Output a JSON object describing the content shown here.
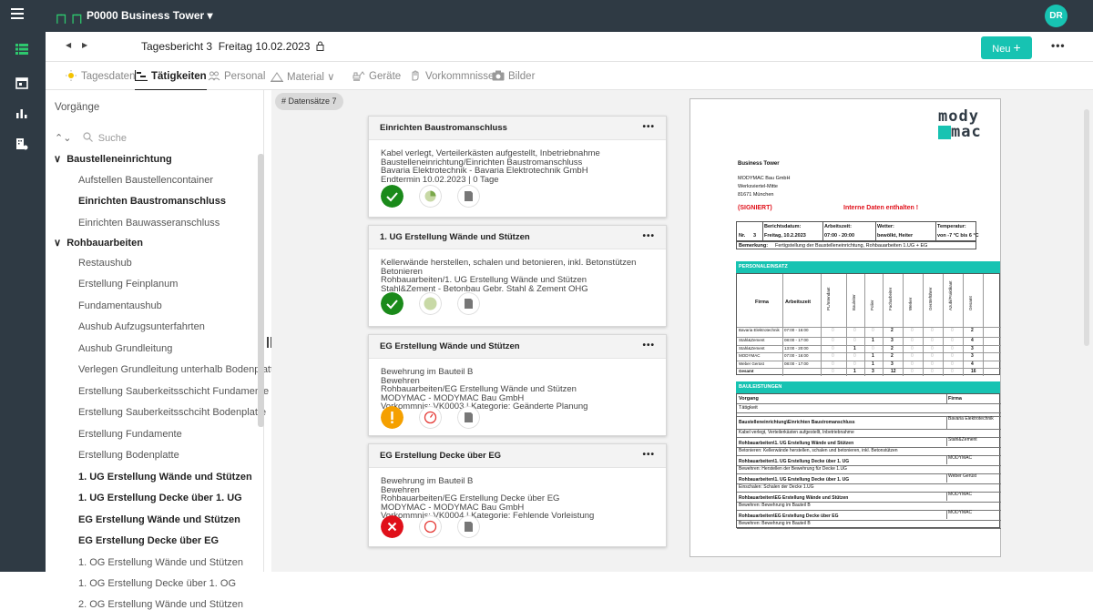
{
  "project": {
    "name": "P0000 Business Tower"
  },
  "user": {
    "initials": "DR"
  },
  "report": {
    "title": "Tagesbericht 3",
    "date": "Freitag 10.02.2023",
    "new_label": "Neu"
  },
  "tabs": [
    {
      "label": "Tagesdaten",
      "icon": "sun-icon"
    },
    {
      "label": "Tätigkeiten",
      "icon": "gantt-icon"
    },
    {
      "label": "Personal",
      "icon": "people-icon"
    },
    {
      "label": "Material",
      "icon": "material-icon"
    },
    {
      "label": "Geräte",
      "icon": "excavator-icon"
    },
    {
      "label": "Vorkommnisse",
      "icon": "hand-icon"
    },
    {
      "label": "Bilder",
      "icon": "camera-icon"
    }
  ],
  "sidebar": {
    "title": "Vorgänge",
    "search_placeholder": "Suche",
    "groups": [
      {
        "label": "Baustelleneinrichtung",
        "items": [
          {
            "label": "Aufstellen Baustellencontainer",
            "bold": false
          },
          {
            "label": "Einrichten Baustromanschluss",
            "bold": true
          },
          {
            "label": "Einrichten Bauwasseranschluss",
            "bold": false
          }
        ]
      },
      {
        "label": "Rohbauarbeiten",
        "items": [
          {
            "label": "Restaushub",
            "bold": false
          },
          {
            "label": "Erstellung Feinplanum",
            "bold": false
          },
          {
            "label": "Fundamentaushub",
            "bold": false
          },
          {
            "label": "Aushub Aufzugsunterfahrten",
            "bold": false
          },
          {
            "label": "Aushub Grundleitung",
            "bold": false
          },
          {
            "label": "Verlegen Grundleitung unterhalb Bodenplatte",
            "bold": false
          },
          {
            "label": "Erstellung Sauberkeitsschicht Fundamente und",
            "bold": false
          },
          {
            "label": "Erstellung Sauberkeitsschciht Bodenplatte",
            "bold": false
          },
          {
            "label": "Erstellung Fundamente",
            "bold": false
          },
          {
            "label": "Erstellung Bodenplatte",
            "bold": false
          },
          {
            "label": "1. UG Erstellung Wände und Stützen",
            "bold": true
          },
          {
            "label": "1. UG Erstellung Decke über 1. UG",
            "bold": true
          },
          {
            "label": "EG Erstellung Wände und Stützen",
            "bold": true
          },
          {
            "label": "EG Erstellung Decke über EG",
            "bold": true
          },
          {
            "label": "1. OG Erstellung Wände und Stützen",
            "bold": false
          },
          {
            "label": "1. OG Erstellung Decke über 1. OG",
            "bold": false
          },
          {
            "label": "2. OG Erstellung Wände und Stützen",
            "bold": false
          }
        ]
      }
    ]
  },
  "main": {
    "record_count": "# Datensätze 7",
    "cards": [
      {
        "title": "Einrichten Baustromanschluss",
        "lines": [
          "Kabel verlegt, Verteilerkästen aufgestellt, Inbetriebnahme",
          "Baustelleneinrichtung/Einrichten Baustromanschluss",
          "Bavaria Elektrotechnik - Bavaria Elektrotechnik GmbH",
          "Endtermin 10.02.2023 | 0 Tage"
        ],
        "status_icons": [
          "check-icon",
          "progress-icon",
          "document-icon"
        ],
        "status_colors": [
          "#1a8a1a",
          "#c8d9a6",
          "#e0e0e0"
        ]
      },
      {
        "title": "1. UG Erstellung Wände und Stützen",
        "lines": [
          "Kellerwände herstellen, schalen und betonieren, inkl. Betonstützen",
          "Betonieren",
          "Rohbauarbeiten/1. UG Erstellung Wände und Stützen",
          "Stahl&Zement - Betonbau Gebr. Stahl & Zement OHG"
        ],
        "status_icons": [
          "check-icon",
          "progress-icon",
          "document-icon"
        ],
        "status_colors": [
          "#1a8a1a",
          "#c8d9a6",
          "#e0e0e0"
        ]
      },
      {
        "title": "EG Erstellung Wände und Stützen",
        "lines": [
          "Bewehrung im Bauteil B",
          "Bewehren",
          "Rohbauarbeiten/EG Erstellung Wände und Stützen",
          "MODYMAC - MODYMAC Bau GmbH",
          "Vorkommnis: VK0003 | Kategorie: Geänderte Planung"
        ],
        "status_icons": [
          "warning-icon",
          "timer-icon",
          "document-icon"
        ],
        "status_colors": [
          "#f5a000",
          "#e53935",
          "#e0e0e0"
        ]
      },
      {
        "title": "EG Erstellung Decke über EG",
        "lines": [
          "Bewehrung im Bauteil B",
          "Bewehren",
          "Rohbauarbeiten/EG Erstellung Decke über EG",
          "MODYMAC - MODYMAC Bau GmbH",
          "Vorkommnis: VK0004 | Kategorie: Fehlende Vorleistung"
        ],
        "status_icons": [
          "error-icon",
          "circle-icon",
          "document-icon"
        ],
        "status_colors": [
          "#e0101a",
          "#e53935",
          "#e0e0e0"
        ]
      }
    ]
  },
  "preview": {
    "logo_top": "mody",
    "logo_bottom": "mac",
    "project": "Business Tower",
    "company": "MODYMAC Bau GmbH",
    "street": "Werksviertel-Mitte",
    "city": "81671 München",
    "signed": "(SIGNIERT)",
    "internal": "Interne Daten enthalten !",
    "hdr_nr": "Nr.",
    "nr": "3",
    "hdr_date": "Berichtsdatum:",
    "date": "Freitag, 10.2.2023",
    "hdr_work": "Arbeitszeit:",
    "worktime": "07:00 - 20:00",
    "hdr_weather": "Wetter:",
    "weather": "bewölkt, Heiter",
    "hdr_temp": "Temperatur:",
    "temp": "von -7 °C  bis  6 °C",
    "remark_label": "Bemerkung:",
    "remark": "Fertigstellung der Baustelleneinrichtung, Rohbauarbeiten 1.UG + EG",
    "personal_title": "PERSONALEINSATZ",
    "personal_cols": [
      "Firma",
      "Arbeitszeit",
      "PL/Intendant",
      "Bauleiter",
      "Polier",
      "Facharbeiter",
      "Werker",
      "Geräteführer",
      "Azubi/Praktikant",
      "Gesamt"
    ],
    "personal_rows": [
      [
        "Bavaria Elektrotechnik",
        "07:00 - 16:00",
        "0",
        "0",
        "0",
        "2",
        "0",
        "0",
        "0",
        "2"
      ],
      [
        "Stahl&Zement",
        "08:00 - 17:00",
        "0",
        "0",
        "1",
        "3",
        "0",
        "0",
        "0",
        "4"
      ],
      [
        "Stahl&Zement",
        "13:00 - 20:00",
        "0",
        "1",
        "0",
        "2",
        "0",
        "0",
        "0",
        "3"
      ],
      [
        "MODYMAC",
        "07:00 - 16:00",
        "0",
        "0",
        "1",
        "2",
        "0",
        "0",
        "0",
        "3"
      ],
      [
        "Weber Gerüst",
        "08:00 - 17:00",
        "0",
        "0",
        "1",
        "3",
        "0",
        "0",
        "0",
        "4"
      ]
    ],
    "personal_total": [
      "Gesamt",
      "",
      "0",
      "1",
      "3",
      "12",
      "0",
      "0",
      "0",
      "16"
    ],
    "leist_title": "BAULEISTUNGEN",
    "leist_col1": "Vorgang",
    "leist_col2": "Firma",
    "leist_sub": "Tätigkeit",
    "leist_rows": [
      {
        "vorgang": "Baustelleneinrichtung\\Einrichten Baustromanschluss",
        "firma": "Bavaria Elektrotechnik",
        "taetigkeit": "Kabel verlegt, Verteilerkästen aufgestellt, Inbetriebnahme"
      },
      {
        "vorgang": "Rohbauarbeiten\\1. UG Erstellung Wände und Stützen",
        "firma": "Stahl&Zement",
        "taetigkeit": "Betonieren: Kellerwände herstellen, schalen und betonieren, inkl. Betonstützen"
      },
      {
        "vorgang": "Rohbauarbeiten\\1. UG Erstellung Decke über 1. UG",
        "firma": "MODYMAC",
        "taetigkeit": "Bewehren: Herstellen der Bewehrung für Decke 1.UG"
      },
      {
        "vorgang": "Rohbauarbeiten\\1. UG Erstellung Decke über 1. UG",
        "firma": "Weber Gerüst",
        "taetigkeit": "Einschalen: Schalen der Decke 1.UG"
      },
      {
        "vorgang": "Rohbauarbeiten\\EG Erstellung Wände und Stützen",
        "firma": "MODYMAC",
        "taetigkeit": "Bewehren: Bewehrung im Bauteil B"
      },
      {
        "vorgang": "Rohbauarbeiten\\EG Erstellung Decke über EG",
        "firma": "MODYMAC",
        "taetigkeit": "Bewehren: Bewehrung im Bauteil B"
      }
    ]
  },
  "colors": {
    "accent": "#17c3b2",
    "topbar": "#2f3a44",
    "logo_green": "#2ec86e",
    "check_green": "#1a8a1a",
    "warning": "#f5a000",
    "error": "#e0101a"
  }
}
